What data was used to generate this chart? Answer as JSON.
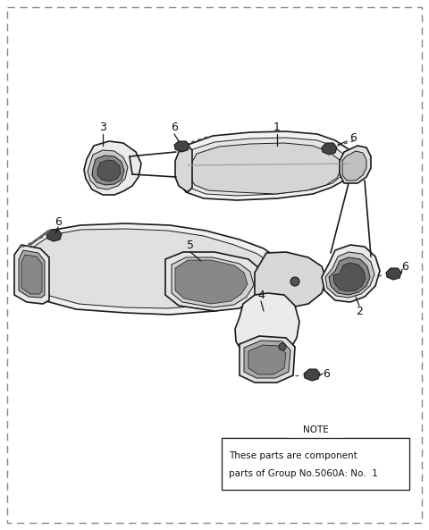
{
  "bg_color": "#ffffff",
  "border_color": "#999999",
  "line_color": "#1a1a1a",
  "fill_light": "#f0f0f0",
  "fill_mid": "#d8d8d8",
  "fill_dark": "#aaaaaa",
  "fill_black": "#333333",
  "note_text_line1": "These parts are component",
  "note_text_line2": "parts of Group No.5060A: No.  1",
  "note_label": "NOTE",
  "figsize": [
    4.8,
    5.93
  ],
  "dpi": 100
}
